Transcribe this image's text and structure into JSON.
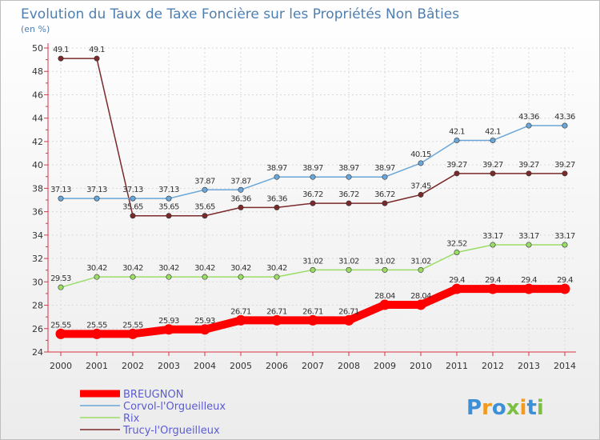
{
  "chart_data": {
    "type": "line",
    "title": "Evolution du Taux de Taxe Foncière sur les Propriétés Non Bâties",
    "subtitle": "(en %)",
    "x": [
      "2000",
      "2001",
      "2002",
      "2003",
      "2004",
      "2005",
      "2006",
      "2007",
      "2008",
      "2009",
      "2010",
      "2011",
      "2012",
      "2013",
      "2014"
    ],
    "ylim": [
      24,
      50
    ],
    "yticks": [
      "24",
      "26",
      "28",
      "30",
      "32",
      "34",
      "36",
      "38",
      "40",
      "42",
      "44",
      "46",
      "48",
      "50"
    ],
    "grid": true,
    "series": [
      {
        "name": "BREUGNON",
        "color": "#ff0000",
        "values": [
          25.55,
          25.55,
          25.55,
          25.93,
          25.93,
          26.71,
          26.71,
          26.71,
          26.71,
          28.04,
          28.04,
          29.4,
          29.4,
          29.4,
          29.4
        ],
        "labels": [
          "25.55",
          "25.55",
          "25.55",
          "25.93",
          "25.93",
          "26.71",
          "26.71",
          "26.71",
          "26.71",
          "28.04",
          "28.04",
          "29.4",
          "29.4",
          "29.4",
          "29.4"
        ]
      },
      {
        "name": "Corvol-l'Orgueilleux",
        "color": "#6aa6d8",
        "values": [
          37.13,
          37.13,
          37.13,
          37.13,
          37.87,
          37.87,
          38.97,
          38.97,
          38.97,
          38.97,
          40.15,
          42.1,
          42.1,
          43.36,
          43.36
        ],
        "labels": [
          "37.13",
          "37.13",
          "37.13",
          "37.13",
          "37.87",
          "37.87",
          "38.97",
          "38.97",
          "38.97",
          "38.97",
          "40.15",
          "42.1",
          "42.1",
          "43.36",
          "43.36"
        ]
      },
      {
        "name": "Rix",
        "color": "#99dd66",
        "values": [
          29.53,
          30.42,
          30.42,
          30.42,
          30.42,
          30.42,
          30.42,
          31.02,
          31.02,
          31.02,
          31.02,
          32.52,
          33.17,
          33.17,
          33.17
        ],
        "labels": [
          "29.53",
          "30.42",
          "30.42",
          "30.42",
          "30.42",
          "30.42",
          "30.42",
          "31.02",
          "31.02",
          "31.02",
          "31.02",
          "32.52",
          "33.17",
          "33.17",
          "33.17"
        ]
      },
      {
        "name": "Trucy-l'Orgueilleux",
        "color": "#7a2a2a",
        "values": [
          49.1,
          49.1,
          35.65,
          35.65,
          35.65,
          36.36,
          36.36,
          36.72,
          36.72,
          36.72,
          37.45,
          39.27,
          39.27,
          39.27,
          39.27
        ],
        "labels": [
          "49.1",
          "49.1",
          "35.65",
          "35.65",
          "35.65",
          "36.36",
          "36.36",
          "36.72",
          "36.72",
          "36.72",
          "37.45",
          "39.27",
          "39.27",
          "39.27",
          "39.27"
        ]
      }
    ]
  },
  "logo": {
    "text": "Proxiti"
  }
}
